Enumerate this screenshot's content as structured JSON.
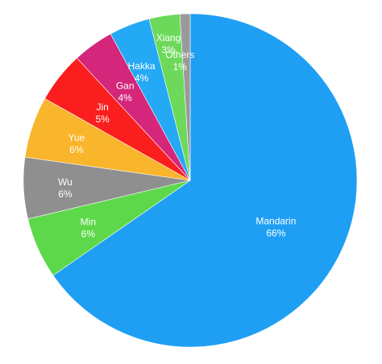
{
  "chart_data": {
    "type": "pie",
    "title": "",
    "start_angle_deg": 0,
    "direction": "clockwise",
    "slices": [
      {
        "label": "Mandarin",
        "value": 66,
        "value_label": "66%",
        "color": "#1e9ff4"
      },
      {
        "label": "Min",
        "value": 6,
        "value_label": "6%",
        "color": "#5dd84a"
      },
      {
        "label": "Wu",
        "value": 6,
        "value_label": "6%",
        "color": "#8f8f8f"
      },
      {
        "label": "Yue",
        "value": 6,
        "value_label": "6%",
        "color": "#f9b52b"
      },
      {
        "label": "Jin",
        "value": 5,
        "value_label": "5%",
        "color": "#fb1e1e"
      },
      {
        "label": "Gan",
        "value": 4,
        "value_label": "4%",
        "color": "#d4267a"
      },
      {
        "label": "Hakka",
        "value": 4,
        "value_label": "4%",
        "color": "#24a9f4"
      },
      {
        "label": "Xiang",
        "value": 3,
        "value_label": "3%",
        "color": "#6cd95a"
      },
      {
        "label": "Others",
        "value": 1,
        "value_label": "1%",
        "color": "#9a9a9a"
      }
    ]
  }
}
